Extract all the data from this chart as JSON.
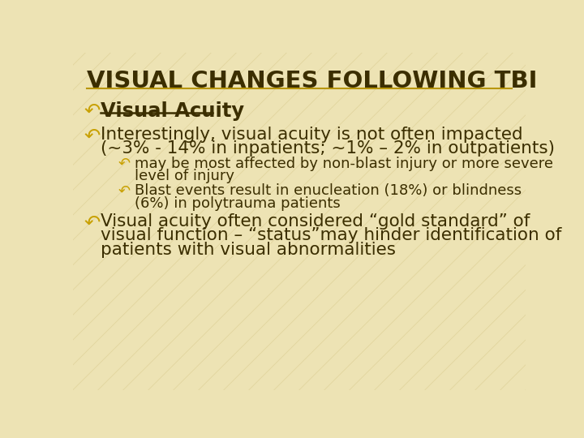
{
  "title": "VISUAL CHANGES FOLLOWING TBI",
  "bg_color": "#EDE3B4",
  "stripe_color": "#D4C483",
  "title_color": "#3B2E00",
  "text_color": "#3B2E00",
  "bullet_color": "#C8A000",
  "separator_color": "#B8960A",
  "title_fontsize": 21,
  "body_fontsize": 15.5,
  "sub_fontsize": 13,
  "bullet1_heading": "Visual Acuity",
  "bullet1_line1": "Interestingly, visual acuity is not often impacted",
  "bullet1_line2": "(~3% - 14% in inpatients; ~1% – 2% in outpatients)",
  "sub1_line1": "may be most affected by non-blast injury or more severe",
  "sub1_line2": "level of injury",
  "sub2_line1": "Blast events result in enucleation (18%) or blindness",
  "sub2_line2": "(6%) in polytrauma patients",
  "bullet2_line1": "Visual acuity often considered “gold standard” of",
  "bullet2_line2": "visual function – “status”may hinder identification of",
  "bullet2_line3": "patients with visual abnormalities"
}
